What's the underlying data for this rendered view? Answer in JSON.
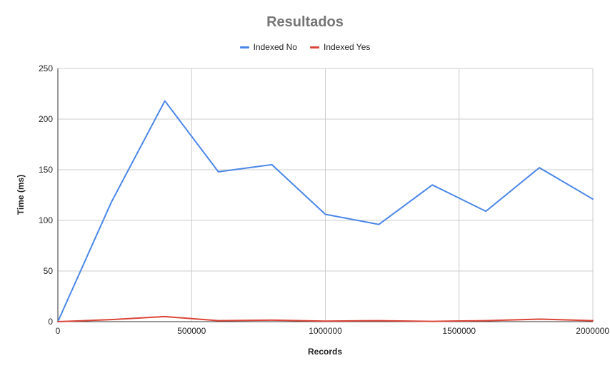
{
  "chart_data": {
    "type": "line",
    "title": "Resultados",
    "xlabel": "Records",
    "ylabel": "Time (ms)",
    "xlim": [
      0,
      2000000
    ],
    "ylim": [
      0,
      250
    ],
    "xticks": [
      0,
      500000,
      1000000,
      1500000,
      2000000
    ],
    "yticks": [
      0,
      50,
      100,
      150,
      200,
      250
    ],
    "grid": true,
    "legend_position": "top",
    "x": [
      0,
      200000,
      400000,
      600000,
      800000,
      1000000,
      1200000,
      1400000,
      1600000,
      1800000,
      2000000
    ],
    "series": [
      {
        "name": "Indexed No",
        "color": "#4a86e8",
        "values": [
          0,
          118,
          218,
          148,
          155,
          106,
          96,
          135,
          109,
          152,
          121
        ]
      },
      {
        "name": "Indexed Yes",
        "color": "#db4437",
        "values": [
          0,
          2,
          5,
          1,
          1.5,
          0.5,
          1,
          0.3,
          1,
          2.5,
          1
        ]
      }
    ]
  }
}
